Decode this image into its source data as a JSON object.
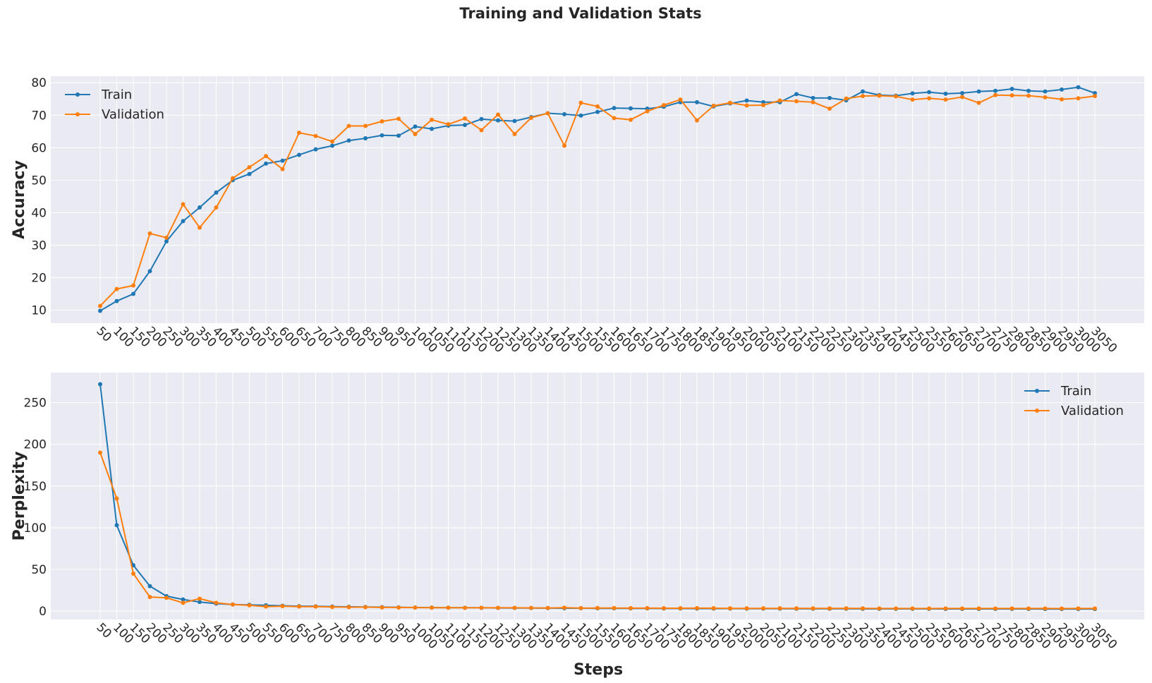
{
  "chart_data": {
    "type": "line",
    "title": "Training and Validation Stats",
    "x": [
      50,
      100,
      150,
      200,
      250,
      300,
      350,
      400,
      450,
      500,
      550,
      600,
      650,
      700,
      750,
      800,
      850,
      900,
      950,
      1000,
      1050,
      1100,
      1150,
      1200,
      1250,
      1300,
      1350,
      1400,
      1450,
      1500,
      1550,
      1600,
      1650,
      1700,
      1750,
      1800,
      1850,
      1900,
      1950,
      2000,
      2050,
      2100,
      2150,
      2200,
      2250,
      2300,
      2350,
      2400,
      2450,
      2500,
      2550,
      2600,
      2650,
      2700,
      2750,
      2800,
      2850,
      2900,
      2950,
      3000,
      3050
    ],
    "xlabel": "Steps",
    "colors": {
      "Train": "#1f77b4",
      "Validation": "#ff7f0e"
    },
    "subplots": [
      {
        "ylabel": "Accuracy",
        "ylim": [
          6,
          82
        ],
        "yticks": [
          10,
          20,
          30,
          40,
          50,
          60,
          70,
          80
        ],
        "legend": "upper-left",
        "series": [
          {
            "name": "Train",
            "values": [
              9.8,
              12.8,
              15.0,
              22.0,
              31.2,
              37.4,
              41.6,
              46.2,
              50.0,
              51.9,
              55.1,
              56.0,
              57.8,
              59.5,
              60.6,
              62.2,
              62.9,
              63.8,
              63.7,
              66.5,
              65.8,
              66.8,
              67.0,
              68.8,
              68.4,
              68.2,
              69.4,
              70.6,
              70.3,
              69.9,
              71.0,
              72.2,
              72.1,
              72.0,
              72.6,
              74.0,
              74.0,
              72.7,
              73.6,
              74.5,
              74.0,
              74.0,
              76.5,
              75.3,
              75.3,
              74.6,
              77.3,
              76.2,
              76.0,
              76.7,
              77.1,
              76.6,
              76.8,
              77.3,
              77.5,
              78.1,
              77.5,
              77.3,
              77.9,
              78.6,
              76.8
            ]
          },
          {
            "name": "Validation",
            "values": [
              11.3,
              16.5,
              17.6,
              33.6,
              32.3,
              42.6,
              35.4,
              41.6,
              50.6,
              54.0,
              57.4,
              53.4,
              64.6,
              63.6,
              61.9,
              66.7,
              66.7,
              68.1,
              68.9,
              64.2,
              68.6,
              67.2,
              69.0,
              65.4,
              70.2,
              64.2,
              69.2,
              70.6,
              60.6,
              73.8,
              72.7,
              69.1,
              68.6,
              71.2,
              73.1,
              74.8,
              68.4,
              72.9,
              73.8,
              73.0,
              73.1,
              74.5,
              74.3,
              74.0,
              72.0,
              75.1,
              75.9,
              76.0,
              75.8,
              74.8,
              75.2,
              74.8,
              75.6,
              73.8,
              76.2,
              76.1,
              76.0,
              75.5,
              74.9,
              75.2,
              75.9
            ]
          }
        ]
      },
      {
        "ylabel": "Perplexity",
        "ylim": [
          -10,
          286
        ],
        "yticks": [
          0,
          50,
          100,
          150,
          200,
          250
        ],
        "legend": "upper-right",
        "series": [
          {
            "name": "Train",
            "values": [
              272,
              103,
              55,
              30,
              18,
              14,
              11,
              9,
              8,
              7.5,
              7,
              6.5,
              6,
              5.8,
              5.5,
              5.2,
              5,
              4.8,
              4.6,
              4.4,
              4.3,
              4.2,
              4.1,
              4,
              3.9,
              3.8,
              3.7,
              3.6,
              3.5,
              3.5,
              3.4,
              3.4,
              3.3,
              3.3,
              3.2,
              3.2,
              3.1,
              3.1,
              3.1,
              3.0,
              3.0,
              3.0,
              2.9,
              2.9,
              2.9,
              2.9,
              2.8,
              2.8,
              2.8,
              2.8,
              2.8,
              2.7,
              2.7,
              2.7,
              2.7,
              2.7,
              2.7,
              2.6,
              2.6,
              2.6,
              2.6
            ]
          },
          {
            "name": "Validation",
            "values": [
              190,
              135,
              45,
              17,
              16,
              10,
              15,
              10,
              8,
              7,
              5.5,
              6,
              5.5,
              5.5,
              5,
              4.8,
              4.8,
              4.5,
              4.4,
              4.3,
              4.2,
              4.2,
              4,
              4,
              4,
              4,
              3.9,
              3.8,
              4.2,
              3.6,
              3.7,
              3.7,
              3.6,
              3.6,
              3.5,
              3.5,
              3.6,
              3.5,
              3.4,
              3.4,
              3.4,
              3.4,
              3.3,
              3.3,
              3.3,
              3.3,
              3.3,
              3.2,
              3.2,
              3.2,
              3.2,
              3.2,
              3.2,
              3.2,
              3.2,
              3.2,
              3.2,
              3.2,
              3.1,
              3.2,
              3.2
            ]
          }
        ]
      }
    ]
  }
}
